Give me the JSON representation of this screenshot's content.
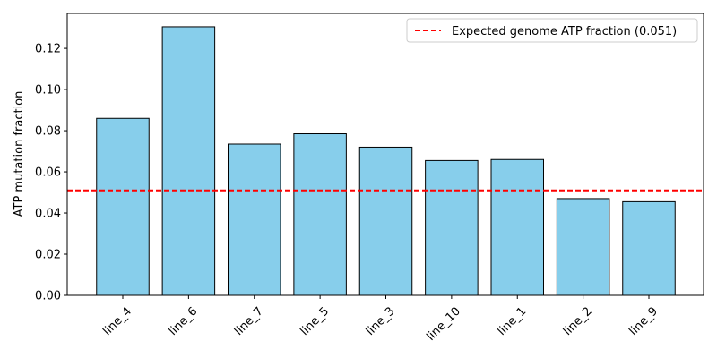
{
  "chart_data": {
    "type": "bar",
    "title": "",
    "xlabel": "",
    "ylabel": "ATP mutation fraction",
    "categories": [
      "line_4",
      "line_6",
      "line_7",
      "line_5",
      "line_3",
      "line_10",
      "line_1",
      "line_2",
      "line_9"
    ],
    "values": [
      0.086,
      0.1305,
      0.0735,
      0.0785,
      0.072,
      0.0655,
      0.066,
      0.047,
      0.0455
    ],
    "ylim": [
      0,
      0.137
    ],
    "yticks": [
      "0.00",
      "0.02",
      "0.04",
      "0.06",
      "0.08",
      "0.10",
      "0.12"
    ],
    "ytick_values": [
      0,
      0.02,
      0.04,
      0.06,
      0.08,
      0.1,
      0.12
    ],
    "bar_color": "#87ceeb",
    "bar_edge_color": "#000000",
    "reference_line": {
      "value": 0.051,
      "color": "#ff0000",
      "style": "dashed",
      "label": "Expected genome ATP fraction (0.051)"
    },
    "legend": {
      "position": "top-right",
      "entries": [
        "Expected genome ATP fraction (0.051)"
      ]
    },
    "grid": false,
    "xtick_rotation": 45
  }
}
